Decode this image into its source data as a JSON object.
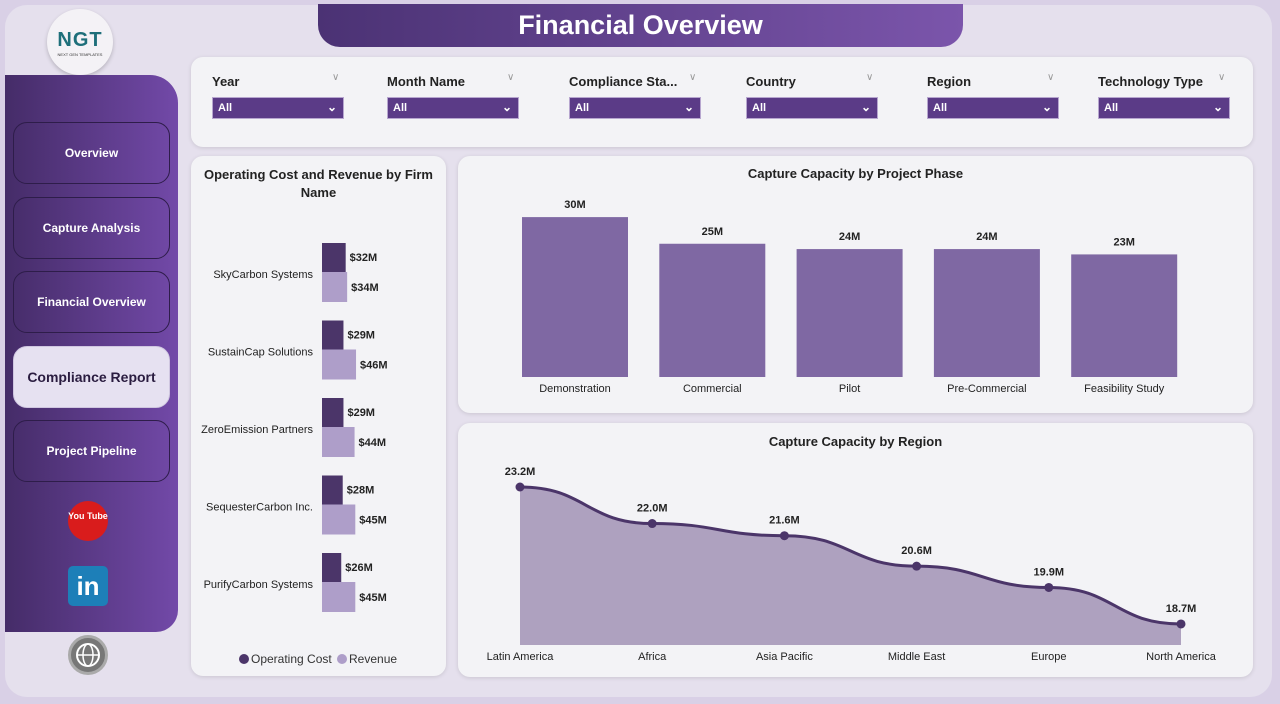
{
  "header": {
    "title": "Financial Overview",
    "logo_text": "NGT",
    "logo_sub": "NEXT GEN TEMPLATES"
  },
  "sidebar": {
    "items": [
      {
        "label": "Overview"
      },
      {
        "label": "Capture Analysis"
      },
      {
        "label": "Financial Overview"
      },
      {
        "label": "Compliance Report",
        "active": true
      },
      {
        "label": "Project Pipeline"
      }
    ],
    "icons": [
      "youtube-icon",
      "linkedin-icon",
      "globe-icon"
    ],
    "youtube_text": "You Tube",
    "linkedin_text": "in"
  },
  "filters": [
    {
      "label": "Year",
      "value": "All"
    },
    {
      "label": "Month Name",
      "value": "All"
    },
    {
      "label": "Compliance Sta...",
      "value": "All"
    },
    {
      "label": "Country",
      "value": "All"
    },
    {
      "label": "Region",
      "value": "All"
    },
    {
      "label": "Technology Type",
      "value": "All"
    }
  ],
  "colors": {
    "primary": "#5b3b87",
    "dark_bar": "#4b3569",
    "light_bar": "#ae9ec9",
    "bar": "#7f68a3",
    "area": "#aea1bf",
    "line": "#4b3569"
  },
  "chart_data": [
    {
      "type": "bar",
      "orientation": "horizontal",
      "title": "Operating Cost and Revenue by Firm Name",
      "categories": [
        "SkyCarbon Systems",
        "SustainCap Solutions",
        "ZeroEmission Partners",
        "SequesterCarbon Inc.",
        "PurifyCarbon Systems"
      ],
      "series": [
        {
          "name": "Operating Cost",
          "values": [
            32,
            29,
            29,
            28,
            26
          ],
          "labels": [
            "$32M",
            "$29M",
            "$29M",
            "$28M",
            "$26M"
          ]
        },
        {
          "name": "Revenue",
          "values": [
            34,
            46,
            44,
            45,
            45
          ],
          "labels": [
            "$34M",
            "$46M",
            "$44M",
            "$45M",
            "$45M"
          ]
        }
      ],
      "unit": "M",
      "legend": "bottom"
    },
    {
      "type": "bar",
      "title": "Capture Capacity by Project Phase",
      "categories": [
        "Demonstration",
        "Commercial",
        "Pilot",
        "Pre-Commercial",
        "Feasibility Study"
      ],
      "values": [
        30,
        25,
        24,
        24,
        23
      ],
      "labels": [
        "30M",
        "25M",
        "24M",
        "24M",
        "23M"
      ]
    },
    {
      "type": "area",
      "title": "Capture Capacity by Region",
      "categories": [
        "Latin America",
        "Africa",
        "Asia Pacific",
        "Middle East",
        "Europe",
        "North America"
      ],
      "values": [
        23.2,
        22.0,
        21.6,
        20.6,
        19.9,
        18.7
      ],
      "labels": [
        "23.2M",
        "22.0M",
        "21.6M",
        "20.6M",
        "19.9M",
        "18.7M"
      ]
    }
  ]
}
